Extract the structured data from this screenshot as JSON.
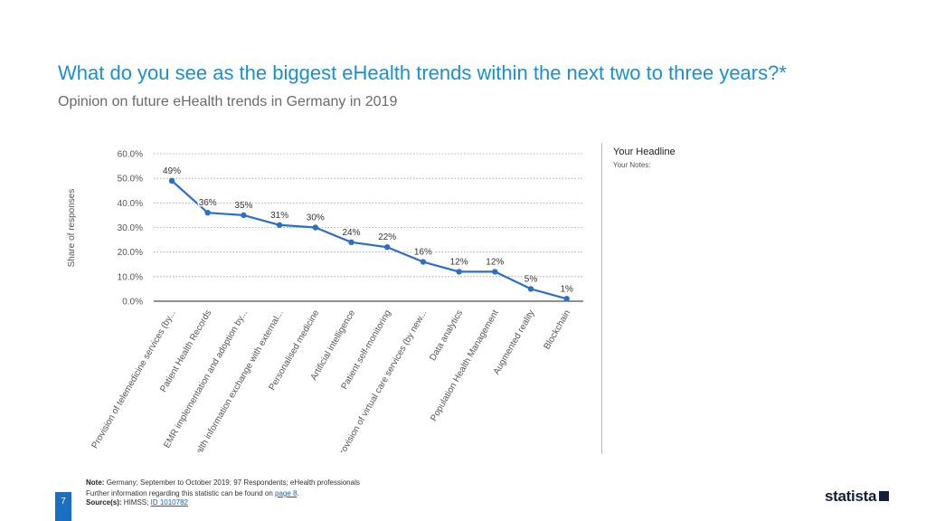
{
  "header": {
    "title": "What do you see as the biggest eHealth trends within the next two to three years?*",
    "subtitle": "Opinion on future eHealth trends in Germany in 2019"
  },
  "side_panel": {
    "headline": "Your Headline",
    "notes": "Your Notes:"
  },
  "footer": {
    "note_label": "Note:",
    "note_text": "Germany; September to October 2019; 97 Respondents; eHealth professionals",
    "further_info": "Further information regarding this statistic can be found on",
    "page_link": "page 8",
    "source_label": "Source(s):",
    "source_text": "HIMSS;",
    "source_link": "ID 1010782",
    "page_number": "7"
  },
  "brand": {
    "logo_text": "statista"
  },
  "colors": {
    "accent": "#1a8fd6",
    "line": "#2a6fc9",
    "grid": "#9a9a9a"
  },
  "chart_data": {
    "type": "line",
    "title": "What do you see as the biggest eHealth trends within the next two to three years?*",
    "ylabel": "Share of responses",
    "xlabel": "",
    "ylim": [
      0,
      60
    ],
    "yticks": [
      "0.0%",
      "10.0%",
      "20.0%",
      "30.0%",
      "40.0%",
      "50.0%",
      "60.0%"
    ],
    "grid": true,
    "categories": [
      "Provision of telemedicine services (by...",
      "Patient Health Records",
      "EMR implementation and adoption by...",
      "Health information exchange with external...",
      "Personalised medicine",
      "Artificial intelligence",
      "Patient self-monitoring",
      "Provision of virtual care services (by new...",
      "Data analytics",
      "Population Health Management",
      "Augmented reality",
      "Blockchain"
    ],
    "values": [
      49,
      36,
      35,
      31,
      30,
      24,
      22,
      16,
      12,
      12,
      5,
      1
    ],
    "labels": [
      "49%",
      "36%",
      "35%",
      "31%",
      "30%",
      "24%",
      "22%",
      "16%",
      "12%",
      "12%",
      "5%",
      "1%"
    ]
  }
}
